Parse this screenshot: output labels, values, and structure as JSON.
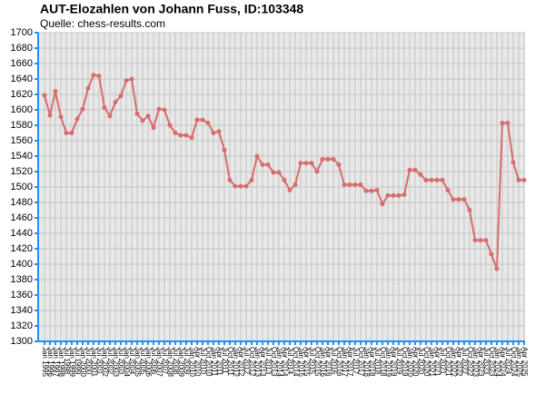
{
  "chart_data": {
    "type": "line",
    "title": "AUT-Elozahlen von Johann Fuss, ID:103348",
    "subtitle": "Quelle: chess-results.com",
    "categories": [
      "Jan 1995",
      "Jan 1996",
      "Jan 1997",
      "Jan 1998",
      "Jul 1998",
      "Jan 1999",
      "Jul 1999",
      "Jan 2000",
      "Jul 2000",
      "Jan 2001",
      "Jul 2001",
      "Jan 2002",
      "Jul 2002",
      "Jan 2003",
      "Jul 2003",
      "Jan 2004",
      "Jul 2004",
      "Jan 2005",
      "Jul 2005",
      "Jan 2006",
      "Jul 2006",
      "Jan 2007",
      "Jul 2007",
      "Jan 2008",
      "Jul 2008",
      "Jan 2009",
      "Jul 2009",
      "Jan 2010",
      "Apr 2010",
      "Jul 2010",
      "Oct 2010",
      "Jan 2011",
      "Apr 2011",
      "Jul 2011",
      "Oct 2011",
      "Jan 2012",
      "Apr 2012",
      "Jul 2012",
      "Oct 2012",
      "Jan 2013",
      "Apr 2013",
      "Jul 2013",
      "Oct 2013",
      "Jan 2014",
      "Apr 2014",
      "Jul 2014",
      "Oct 2014",
      "Jan 2015",
      "Apr 2015",
      "Jul 2015",
      "Oct 2015",
      "Jan 2016",
      "Apr 2016",
      "Jul 2016",
      "Oct 2016",
      "Jan 2017",
      "Apr 2017",
      "Jul 2017",
      "Oct 2017",
      "Jan 2018",
      "Apr 2018",
      "Jul 2018",
      "Oct 2018",
      "Jan 2019",
      "Apr 2019",
      "Jul 2019",
      "Oct 2019",
      "Jan 2020",
      "Apr 2020",
      "Jul 2020",
      "Oct 2020",
      "Jan 2021",
      "Apr 2021",
      "Jul 2021",
      "Oct 2021",
      "Jan 2022",
      "Apr 2022",
      "Jul 2022",
      "Oct 2022",
      "Jan 2023",
      "Apr 2023",
      "Jul 2023",
      "Oct 2023",
      "Jan 2024",
      "Apr 2024",
      "Jul 2024",
      "Oct 2024",
      "Jan 2025",
      "Apr 2025"
    ],
    "values": [
      1619,
      1593,
      1624,
      1591,
      1570,
      1570,
      1588,
      1601,
      1628,
      1645,
      1644,
      1603,
      1592,
      1610,
      1618,
      1638,
      1640,
      1595,
      1586,
      1592,
      1577,
      1601,
      1600,
      1580,
      1570,
      1567,
      1567,
      1564,
      1587,
      1587,
      1583,
      1570,
      1572,
      1548,
      1509,
      1501,
      1501,
      1501,
      1509,
      1540,
      1529,
      1529,
      1519,
      1519,
      1509,
      1496,
      1503,
      1531,
      1531,
      1531,
      1520,
      1536,
      1536,
      1536,
      1529,
      1503,
      1503,
      1503,
      1503,
      1495,
      1495,
      1496,
      1478,
      1489,
      1489,
      1489,
      1490,
      1522,
      1522,
      1516,
      1509,
      1509,
      1509,
      1509,
      1496,
      1484,
      1484,
      1484,
      1470,
      1431,
      1431,
      1431,
      1413,
      1394,
      1583,
      1583,
      1532,
      1509,
      1509
    ],
    "color": "#d96b6b",
    "ylim": [
      1300,
      1700
    ],
    "yticks": [
      1300,
      1320,
      1340,
      1360,
      1380,
      1400,
      1420,
      1440,
      1460,
      1480,
      1500,
      1520,
      1540,
      1560,
      1580,
      1600,
      1620,
      1640,
      1660,
      1680,
      1700
    ],
    "grid": true
  }
}
